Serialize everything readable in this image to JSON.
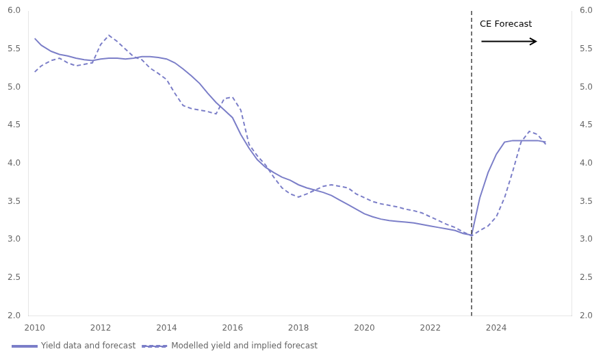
{
  "chart_data": {
    "type": "line",
    "x": [
      2010.0,
      2010.2,
      2010.5,
      2010.75,
      2011.0,
      2011.25,
      2011.5,
      2011.75,
      2012.0,
      2012.25,
      2012.5,
      2012.75,
      2013.0,
      2013.25,
      2013.5,
      2013.75,
      2014.0,
      2014.25,
      2014.5,
      2014.75,
      2015.0,
      2015.25,
      2015.5,
      2015.75,
      2016.0,
      2016.25,
      2016.5,
      2016.75,
      2017.0,
      2017.25,
      2017.5,
      2017.75,
      2018.0,
      2018.25,
      2018.5,
      2018.75,
      2019.0,
      2019.25,
      2019.5,
      2019.75,
      2020.0,
      2020.25,
      2020.5,
      2020.75,
      2021.0,
      2021.25,
      2021.5,
      2021.75,
      2022.0,
      2022.25,
      2022.5,
      2022.75,
      2023.0,
      2023.25,
      2023.5,
      2023.75,
      2024.0,
      2024.25,
      2024.5,
      2024.75,
      2025.0,
      2025.25,
      2025.5
    ],
    "series": [
      {
        "name": "Yield data and forecast",
        "color": "#7b7ec8",
        "line_style": "solid",
        "values": [
          5.64,
          5.55,
          5.47,
          5.43,
          5.41,
          5.38,
          5.36,
          5.35,
          5.37,
          5.38,
          5.38,
          5.37,
          5.38,
          5.4,
          5.4,
          5.39,
          5.37,
          5.32,
          5.24,
          5.15,
          5.05,
          4.92,
          4.8,
          4.7,
          4.6,
          4.38,
          4.2,
          4.05,
          3.95,
          3.88,
          3.82,
          3.78,
          3.72,
          3.68,
          3.65,
          3.62,
          3.58,
          3.52,
          3.46,
          3.4,
          3.34,
          3.3,
          3.27,
          3.25,
          3.24,
          3.23,
          3.22,
          3.2,
          3.18,
          3.16,
          3.14,
          3.12,
          3.08,
          3.06,
          3.55,
          3.88,
          4.12,
          4.28,
          4.3,
          4.3,
          4.3,
          4.3,
          4.28
        ]
      },
      {
        "name": "Modelled yield and implied forecast",
        "color": "#7b7ec8",
        "line_style": "dashed",
        "values": [
          5.2,
          5.28,
          5.35,
          5.38,
          5.32,
          5.28,
          5.3,
          5.32,
          5.56,
          5.68,
          5.6,
          5.5,
          5.4,
          5.36,
          5.25,
          5.18,
          5.1,
          4.92,
          4.76,
          4.72,
          4.7,
          4.68,
          4.65,
          4.85,
          4.87,
          4.7,
          4.25,
          4.1,
          3.98,
          3.82,
          3.68,
          3.6,
          3.56,
          3.6,
          3.65,
          3.7,
          3.72,
          3.7,
          3.68,
          3.6,
          3.55,
          3.5,
          3.47,
          3.45,
          3.43,
          3.4,
          3.38,
          3.35,
          3.3,
          3.25,
          3.2,
          3.16,
          3.1,
          3.05,
          3.12,
          3.18,
          3.3,
          3.55,
          3.9,
          4.28,
          4.42,
          4.38,
          4.25
        ]
      }
    ],
    "xlim": [
      2009.8,
      2026.3
    ],
    "xticks": [
      2010,
      2012,
      2014,
      2016,
      2018,
      2020,
      2022,
      2024
    ],
    "ylim": [
      2.0,
      6.0
    ],
    "yticks": [
      {
        "value": 2.0,
        "label": "2.0"
      },
      2.5,
      {
        "value": 3.0,
        "label": "3.0"
      },
      3.5,
      {
        "value": 4.0,
        "label": "4.0"
      },
      4.5,
      {
        "value": 5.0,
        "label": "5.0"
      },
      5.5,
      {
        "value": 6.0,
        "label": "6.0"
      }
    ],
    "y2lim": [
      2.0,
      6.0
    ],
    "y2ticks": [
      {
        "value": 2.0,
        "label": "2.0"
      },
      2.5,
      {
        "value": 3.0,
        "label": "3.0"
      },
      3.5,
      {
        "value": 4.0,
        "label": "4.0"
      },
      4.5,
      {
        "value": 5.0,
        "label": "5.0"
      },
      5.5,
      {
        "value": 6.0,
        "label": "6.0"
      }
    ],
    "annotations": [
      {
        "type": "vline",
        "x": 2023.25,
        "color": "#444444",
        "line_style": "dashed"
      },
      {
        "type": "text",
        "text": "CE Forecast",
        "x": 2023.5,
        "y": 5.88,
        "color": "#000000"
      },
      {
        "type": "arrow",
        "x": 2023.55,
        "x_end": 2025.2,
        "y": 5.6,
        "color": "#000000"
      }
    ],
    "grid": false,
    "legend": "lower left"
  }
}
